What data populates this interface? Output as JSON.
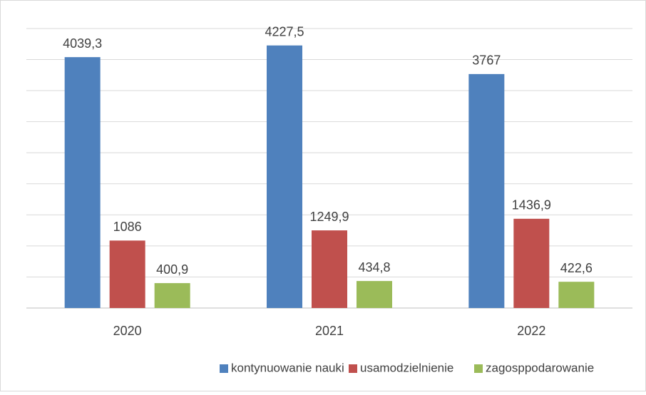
{
  "chart_data": {
    "type": "bar",
    "categories": [
      "2020",
      "2021",
      "2022"
    ],
    "series": [
      {
        "name": "kontynuowanie nauki",
        "color": "#4f81bd",
        "values": [
          4039.3,
          4227.5,
          3767
        ],
        "value_labels": [
          "4039,3",
          "4227,5",
          "3767"
        ]
      },
      {
        "name": "usamodzielnienie",
        "color": "#c0504d",
        "values": [
          1086,
          1249.9,
          1436.9
        ],
        "value_labels": [
          "1086",
          "1249,9",
          "1436,9"
        ]
      },
      {
        "name": "zagosppodarowanie",
        "color": "#9bbb59",
        "values": [
          400.9,
          434.8,
          422.6
        ],
        "value_labels": [
          "400,9",
          "434,8",
          "422,6"
        ]
      }
    ],
    "ylim": [
      0,
      4500
    ],
    "yticks": [
      0,
      500,
      1000,
      1500,
      2000,
      2500,
      3000,
      3500,
      4000,
      4500
    ],
    "grid": true,
    "legend": "bottom"
  }
}
